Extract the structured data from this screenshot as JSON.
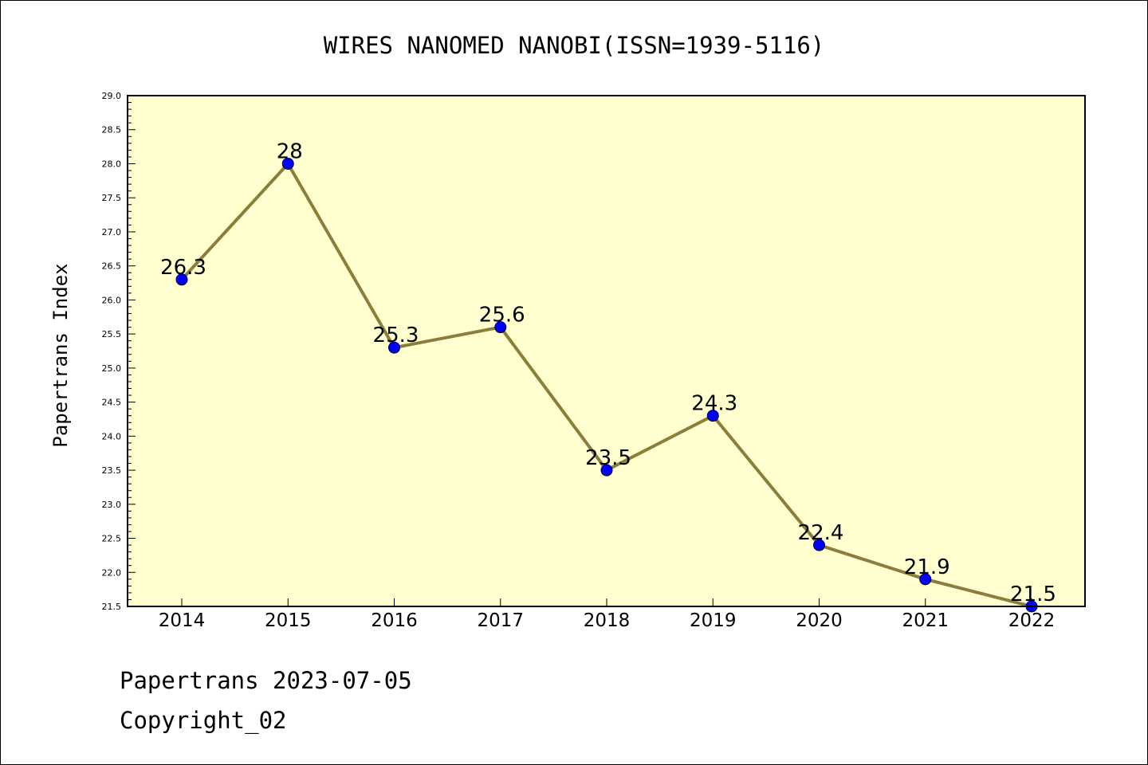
{
  "chart_data": {
    "type": "line",
    "title": "WIRES NANOMED NANOBI(ISSN=1939-5116)",
    "ylabel": "Papertrans Index",
    "xlabel": "",
    "categories": [
      "2014",
      "2015",
      "2016",
      "2017",
      "2018",
      "2019",
      "2020",
      "2021",
      "2022"
    ],
    "values": [
      26.3,
      28,
      25.3,
      25.6,
      23.5,
      24.3,
      22.4,
      21.9,
      21.5
    ],
    "data_labels": [
      "26.3",
      "28",
      "25.3",
      "25.6",
      "23.5",
      "24.3",
      "22.4",
      "21.9",
      "21.5"
    ],
    "ylim": [
      21.5,
      29.0
    ],
    "yticks": [
      "21.5",
      "22.0",
      "22.5",
      "23.0",
      "23.5",
      "24.0",
      "24.5",
      "25.0",
      "25.5",
      "26.0",
      "26.5",
      "27.0",
      "27.5",
      "28.0",
      "28.5",
      "29.0"
    ],
    "grid": false,
    "colors": {
      "plot_background": "#ffffd0",
      "line": "#8b7d3a",
      "marker": "#0000ff"
    }
  },
  "footer": {
    "line1": "Papertrans 2023-07-05",
    "line2": "Copyright_02"
  }
}
